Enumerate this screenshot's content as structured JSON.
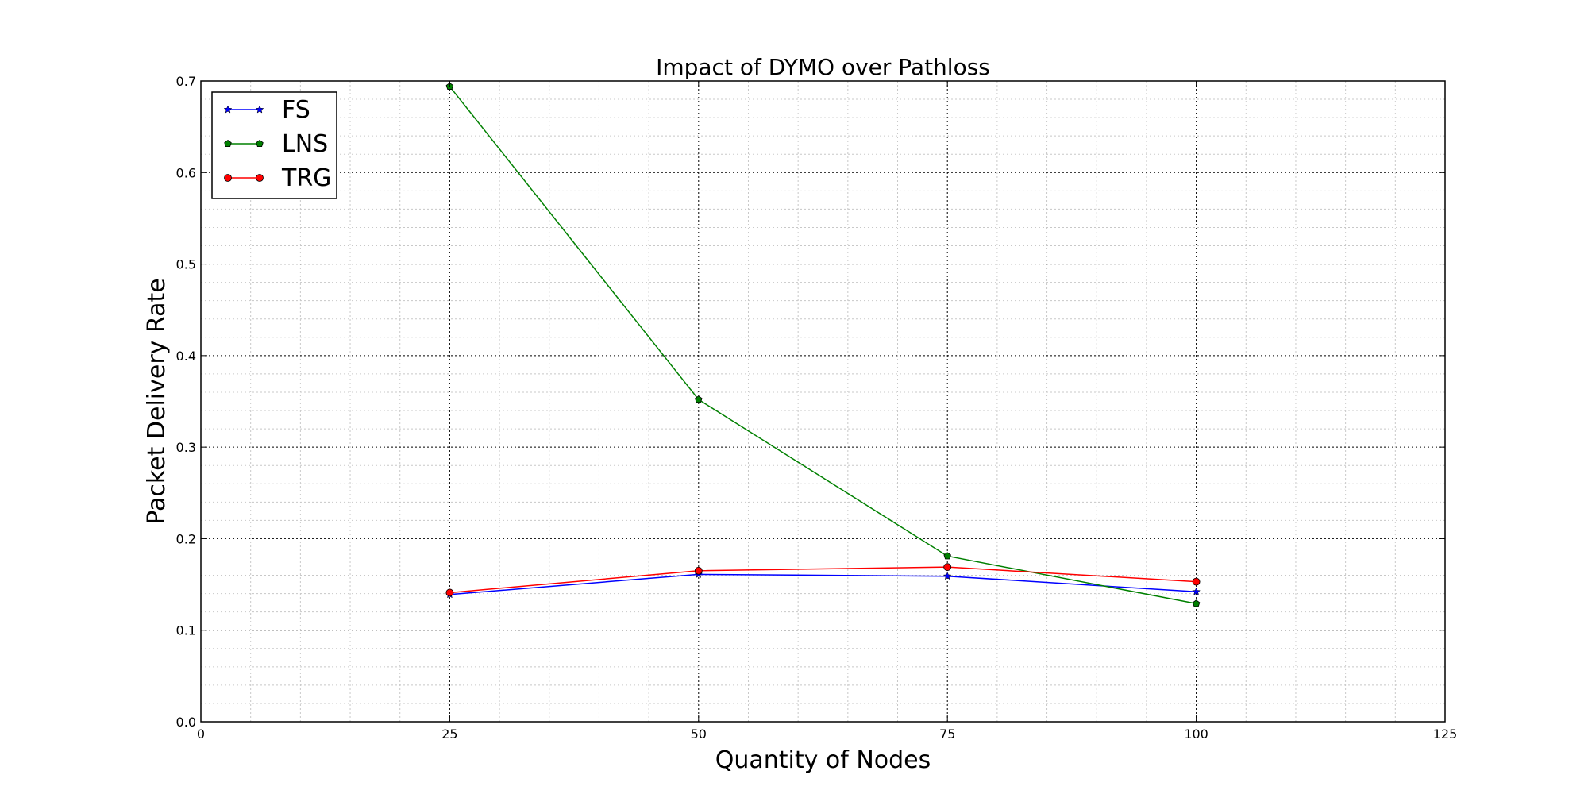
{
  "chart_data": {
    "type": "line",
    "title": "Impact of DYMO over Pathloss",
    "xlabel": "Quantity of Nodes",
    "ylabel": "Packet Delivery Rate",
    "xlim": [
      0,
      125
    ],
    "ylim": [
      0,
      0.7
    ],
    "x_ticks": [
      "0",
      "25",
      "50",
      "75",
      "100",
      "125"
    ],
    "y_ticks": [
      "0.0",
      "0.1",
      "0.2",
      "0.3",
      "0.4",
      "0.5",
      "0.6",
      "0.7"
    ],
    "grid": true,
    "minor_grid": true,
    "legend_position": "top-left",
    "x": [
      25,
      50,
      75,
      100
    ],
    "series": [
      {
        "name": "FS",
        "values": [
          0.139,
          0.161,
          0.159,
          0.142
        ],
        "color": "#0000ff",
        "marker": "star"
      },
      {
        "name": "LNS",
        "values": [
          0.694,
          0.352,
          0.181,
          0.129
        ],
        "color": "#008000",
        "marker": "pentagon"
      },
      {
        "name": "TRG",
        "values": [
          0.141,
          0.165,
          0.169,
          0.153
        ],
        "color": "#ff0000",
        "marker": "circle"
      }
    ]
  }
}
